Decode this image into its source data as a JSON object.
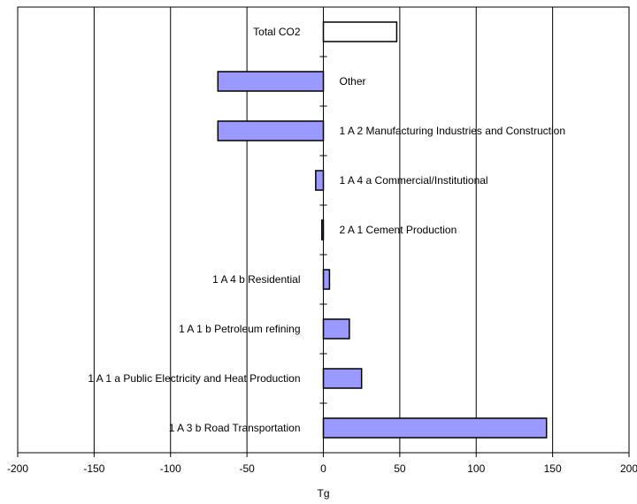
{
  "chart_data": {
    "type": "bar",
    "orientation": "horizontal",
    "title": "",
    "xlabel": "Tg",
    "ylabel": "",
    "xlim": [
      -200,
      200
    ],
    "xticks": [
      -200,
      -150,
      -100,
      -50,
      0,
      50,
      100,
      150,
      200
    ],
    "grid": "vertical",
    "legend": "none",
    "categories": [
      "Total CO2",
      "Other",
      "1 A 2 Manufacturing Industries and Construction",
      "1 A 4 a Commercial/Institutional",
      "2 A 1 Cement Production",
      "1 A 4 b Residential",
      "1 A 1 b Petroleum refining",
      "1 A 1 a Public Electricity and Heat Production",
      "1 A 3 b Road Transportation"
    ],
    "values": [
      48,
      -69,
      -69,
      -5,
      -1,
      4,
      17,
      25,
      146
    ],
    "colors": {
      "bar_fill": "#9999ff",
      "total_fill": "#ffffff",
      "bar_stroke": "#000000",
      "grid": "#000000"
    }
  }
}
